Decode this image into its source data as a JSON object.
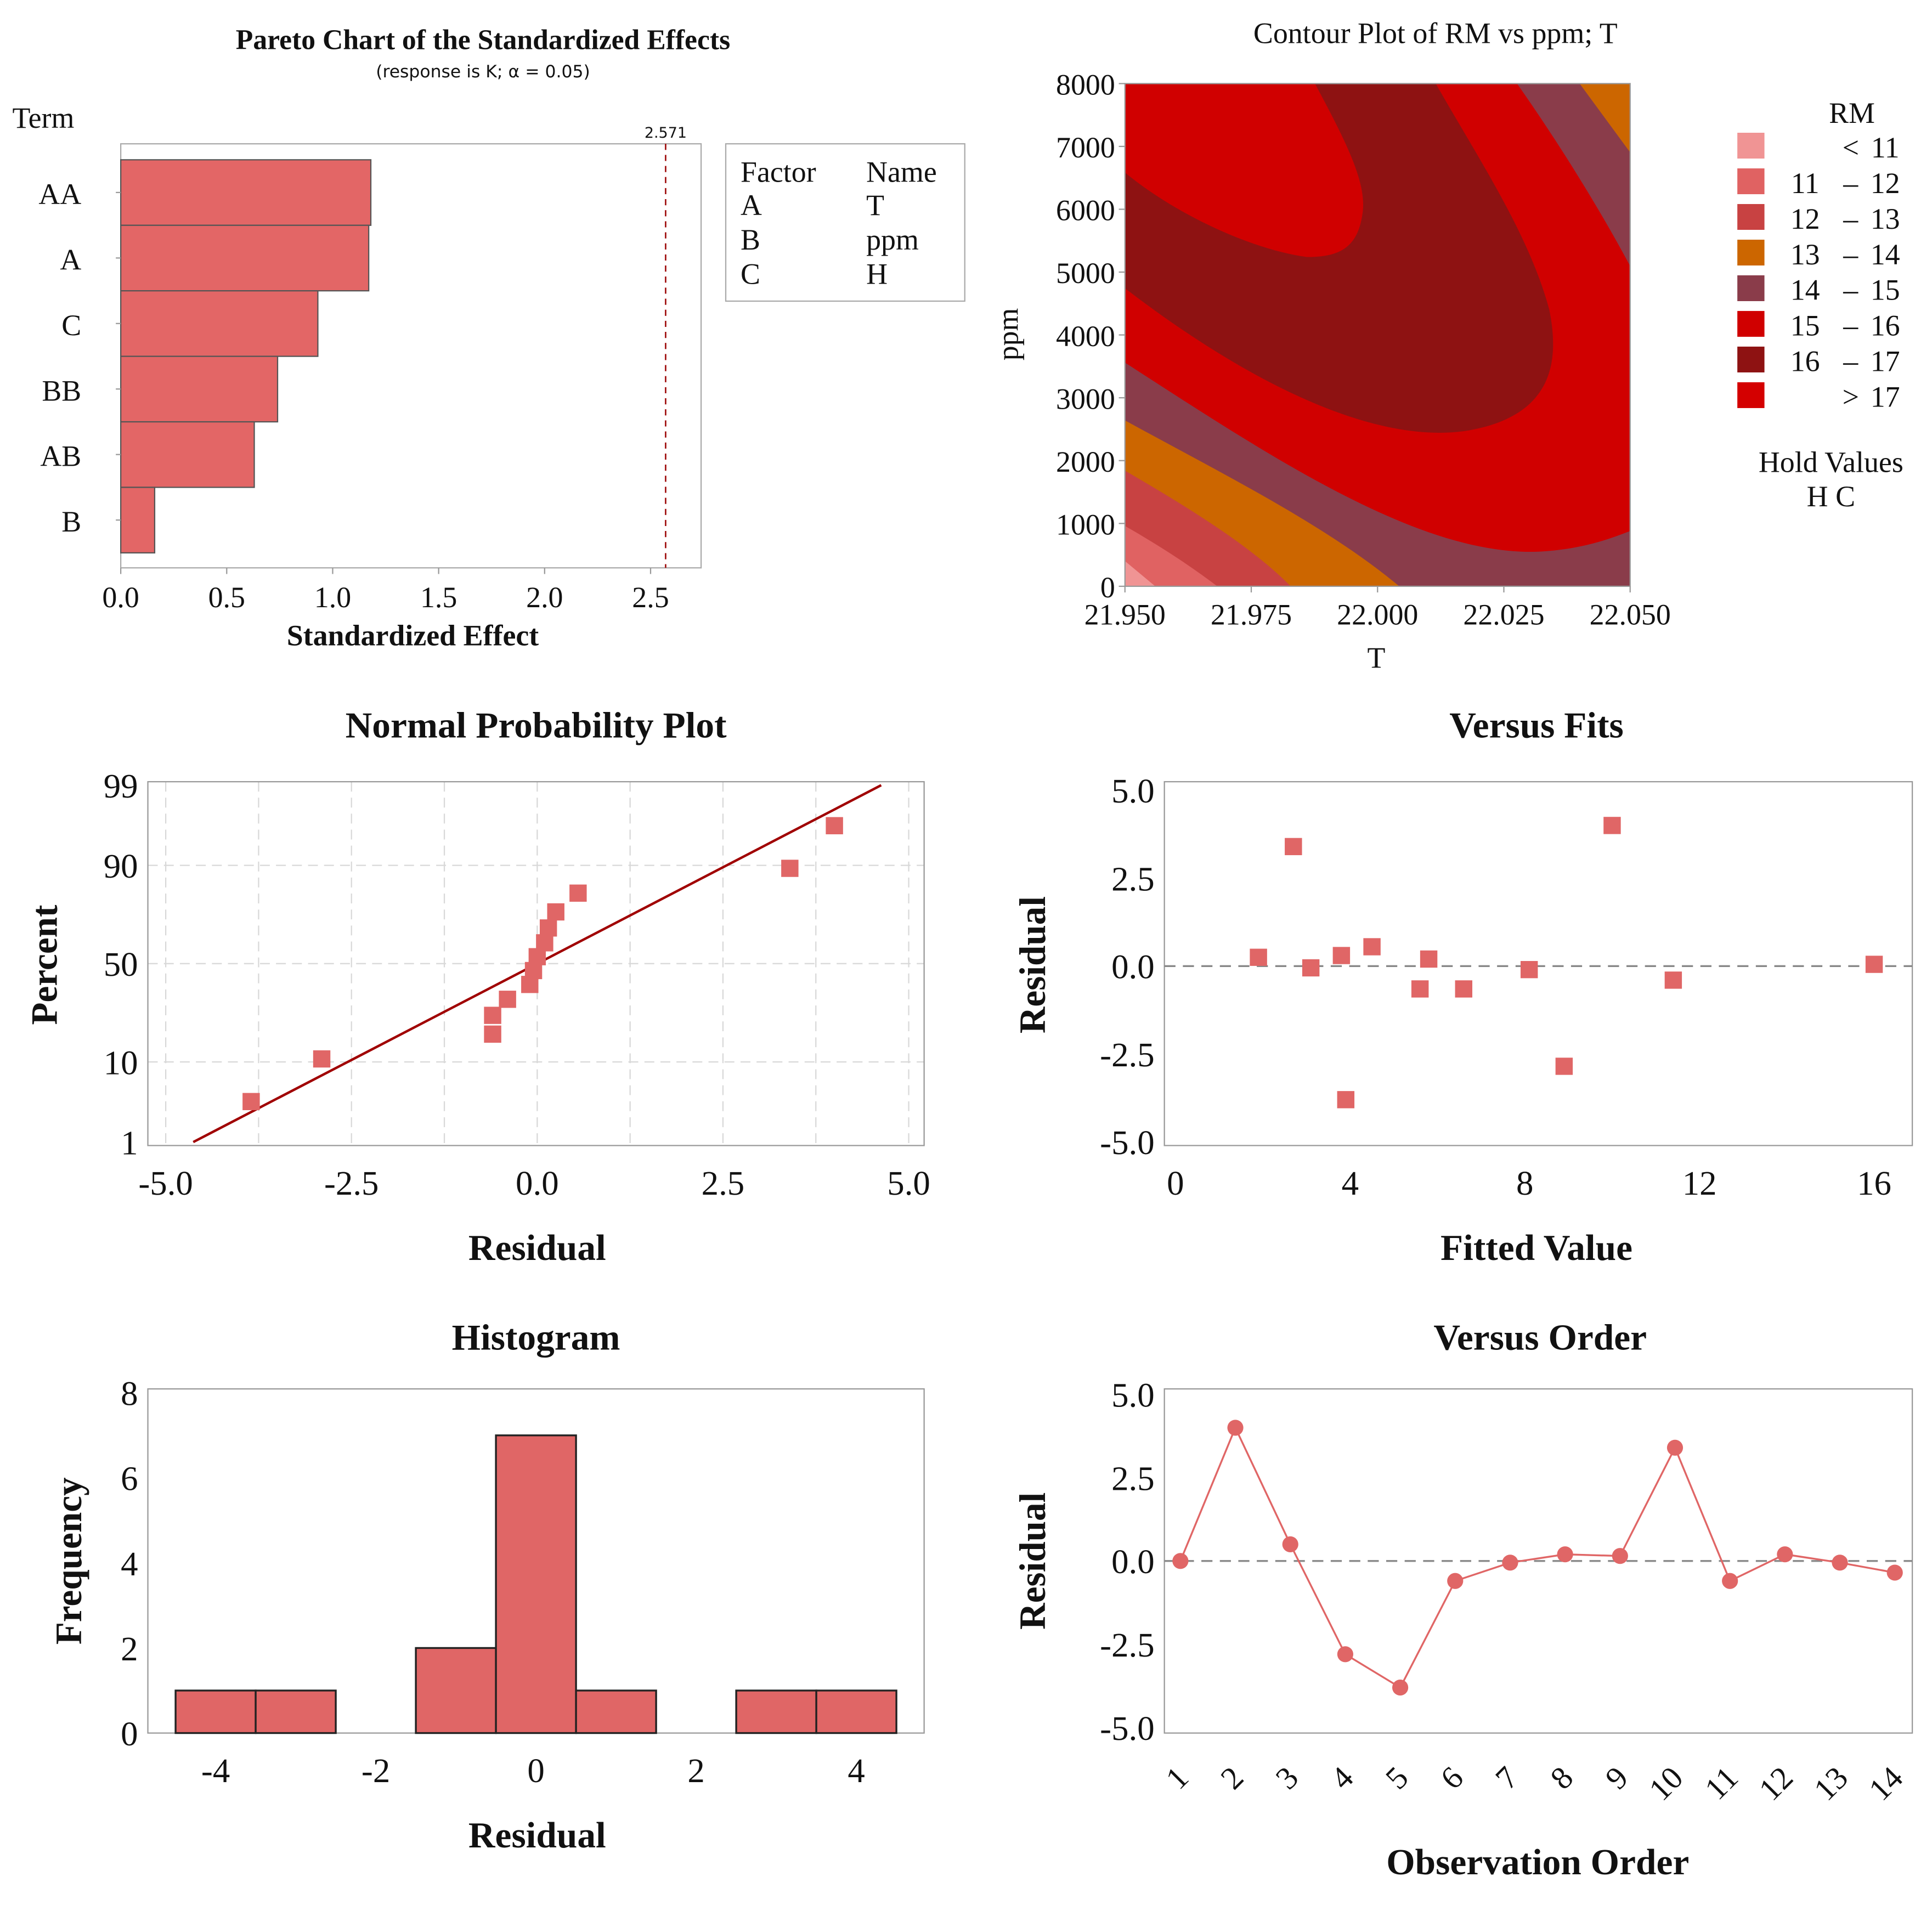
{
  "chart_data": [
    {
      "type": "bar",
      "orientation": "horizontal",
      "title": "Pareto Chart of the Standardized Effects",
      "subtitle": "(response is K; α = 0.05)",
      "ylabel": "Term",
      "xlabel": "Standardized Effect",
      "categories": [
        "AA",
        "A",
        "C",
        "BB",
        "AB",
        "B"
      ],
      "values": [
        1.18,
        1.17,
        0.93,
        0.74,
        0.63,
        0.16
      ],
      "reference_line": {
        "value": 2.571,
        "label": "2.571",
        "color": "#a01010"
      },
      "xticks": [
        "0.0",
        "0.5",
        "1.0",
        "1.5",
        "2.0",
        "2.5"
      ],
      "xlim": [
        0,
        2.75
      ],
      "legend": {
        "headers": [
          "Factor",
          "Name"
        ],
        "rows": [
          [
            "A",
            "T"
          ],
          [
            "B",
            "ppm"
          ],
          [
            "C",
            "H"
          ]
        ]
      },
      "bar_color": "#e36666"
    },
    {
      "type": "heatmap",
      "subtype": "contour",
      "title": "Contour Plot of RM vs ppm; T",
      "xlabel": "T",
      "ylabel": "ppm",
      "xticks": [
        "21.950",
        "21.975",
        "22.000",
        "22.025",
        "22.050"
      ],
      "yticks": [
        "0",
        "1000",
        "2000",
        "3000",
        "4000",
        "5000",
        "6000",
        "7000",
        "8000"
      ],
      "xlim": [
        21.95,
        22.05
      ],
      "ylim": [
        0,
        8000
      ],
      "legend_title": "RM",
      "levels": [
        {
          "from": "",
          "sep": "<",
          "to": "11",
          "color": "#f09494"
        },
        {
          "from": "11",
          "sep": "–",
          "to": "12",
          "color": "#e06262"
        },
        {
          "from": "12",
          "sep": "–",
          "to": "13",
          "color": "#c84242"
        },
        {
          "from": "13",
          "sep": "–",
          "to": "14",
          "color": "#cc6600"
        },
        {
          "from": "14",
          "sep": "–",
          "to": "15",
          "color": "#8a3c4a"
        },
        {
          "from": "15",
          "sep": "–",
          "to": "16",
          "color": "#d00000"
        },
        {
          "from": "16",
          "sep": "–",
          "to": "17",
          "color": "#8e1212"
        },
        {
          "from": "",
          "sep": ">",
          "to": "17",
          "color": "#d40000"
        }
      ],
      "hold_values_title": "Hold Values",
      "hold_values": "H   C"
    },
    {
      "type": "scatter",
      "title": "Normal Probability Plot",
      "xlabel": "Residual",
      "ylabel": "Percent",
      "xticks": [
        "-5.0",
        "-2.5",
        "0.0",
        "2.5",
        "5.0"
      ],
      "yticks": [
        "1",
        "10",
        "50",
        "90",
        "99"
      ],
      "xlim": [
        -5,
        5
      ],
      "ylim": [
        1,
        99
      ],
      "points": [
        [
          -3.85,
          3.6
        ],
        [
          -2.9,
          10.7
        ],
        [
          -0.6,
          17.9
        ],
        [
          -0.6,
          25
        ],
        [
          -0.4,
          32.1
        ],
        [
          -0.1,
          39.3
        ],
        [
          -0.05,
          46.4
        ],
        [
          0.0,
          53.6
        ],
        [
          0.1,
          60.7
        ],
        [
          0.15,
          67.9
        ],
        [
          0.25,
          75
        ],
        [
          0.55,
          82.1
        ],
        [
          3.4,
          89.3
        ],
        [
          4.0,
          96.4
        ]
      ],
      "fit_line": {
        "mean": 0,
        "sd": 1.99,
        "color": "#a00000"
      }
    },
    {
      "type": "scatter",
      "title": "Versus Fits",
      "xlabel": "Fitted Value",
      "ylabel": "Residual",
      "xticks": [
        "0",
        "4",
        "8",
        "12",
        "16"
      ],
      "yticks": [
        "-5.0",
        "-2.5",
        "0.0",
        "2.5",
        "5.0"
      ],
      "xlim": [
        0,
        17
      ],
      "ylim": [
        -5,
        5
      ],
      "points": [
        [
          1.9,
          0.25
        ],
        [
          2.7,
          3.4
        ],
        [
          3.1,
          -0.05
        ],
        [
          3.8,
          0.3
        ],
        [
          3.9,
          -3.8
        ],
        [
          4.5,
          0.55
        ],
        [
          5.6,
          -0.65
        ],
        [
          5.8,
          0.2
        ],
        [
          6.6,
          -0.65
        ],
        [
          8.1,
          -0.1
        ],
        [
          8.9,
          -2.85
        ],
        [
          10.0,
          4.0
        ],
        [
          11.4,
          -0.4
        ],
        [
          16.0,
          0.05
        ]
      ]
    },
    {
      "type": "bar",
      "title": "Histogram",
      "xlabel": "Residual",
      "ylabel": "Frequency",
      "bin_centers": [
        -4,
        -3,
        -2,
        -1,
        0,
        1,
        2,
        3,
        4
      ],
      "values": [
        1,
        1,
        0,
        2,
        7,
        1,
        0,
        1,
        1
      ],
      "xticks": [
        "-4",
        "-2",
        "0",
        "2",
        "4"
      ],
      "yticks": [
        "0",
        "2",
        "4",
        "6",
        "8"
      ],
      "ylim": [
        0,
        8
      ]
    },
    {
      "type": "line",
      "title": "Versus Order",
      "xlabel": "Observation Order",
      "ylabel": "Residual",
      "x": [
        1,
        2,
        3,
        4,
        5,
        6,
        7,
        8,
        9,
        10,
        11,
        12,
        13,
        14
      ],
      "values": [
        0.0,
        4.0,
        0.5,
        -2.8,
        -3.8,
        -0.6,
        -0.05,
        0.2,
        0.15,
        3.4,
        -0.6,
        0.2,
        -0.05,
        -0.35
      ],
      "xticks": [
        "1",
        "2",
        "3",
        "4",
        "5",
        "6",
        "7",
        "8",
        "9",
        "10",
        "11",
        "12",
        "13",
        "14"
      ],
      "yticks": [
        "-5.0",
        "-2.5",
        "0.0",
        "2.5",
        "5.0"
      ],
      "ylim": [
        -5,
        5
      ]
    }
  ],
  "colors": {
    "marker": "#e06666",
    "axis": "#999999",
    "grid": "#d8d8d8"
  }
}
